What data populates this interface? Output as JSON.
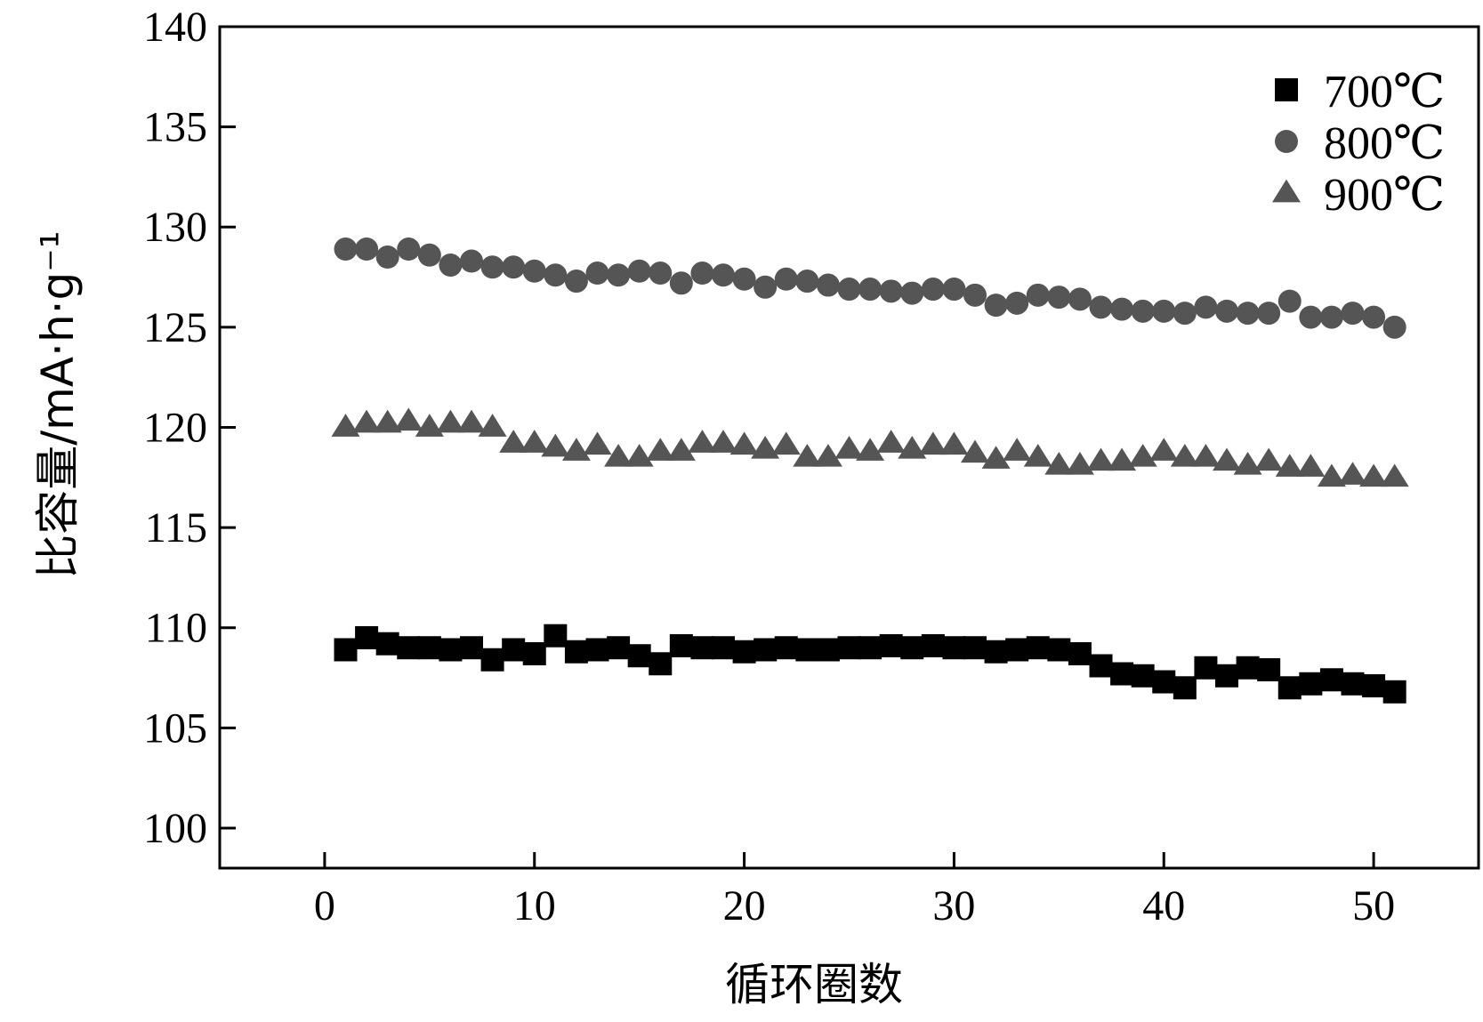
{
  "chart_data": {
    "type": "scatter",
    "xlabel": "循环圈数",
    "ylabel": "比容量/mA·h·g⁻¹",
    "xlim": [
      -5,
      55
    ],
    "ylim": [
      98,
      140
    ],
    "x_ticks": [
      0,
      10,
      20,
      30,
      40,
      50
    ],
    "y_ticks": [
      100,
      105,
      110,
      115,
      120,
      125,
      130,
      135,
      140
    ],
    "grid": false,
    "legend_position": "top-right",
    "x": [
      1,
      2,
      3,
      4,
      5,
      6,
      7,
      8,
      9,
      10,
      11,
      12,
      13,
      14,
      15,
      16,
      17,
      18,
      19,
      20,
      21,
      22,
      23,
      24,
      25,
      26,
      27,
      28,
      29,
      30,
      31,
      32,
      33,
      34,
      35,
      36,
      37,
      38,
      39,
      40,
      41,
      42,
      43,
      44,
      45,
      46,
      47,
      48,
      49,
      50,
      51
    ],
    "series": [
      {
        "name": "700℃",
        "marker": "square",
        "color": "#000000",
        "values": [
          108.9,
          109.5,
          109.2,
          109.0,
          109.0,
          108.9,
          109.0,
          108.4,
          108.9,
          108.7,
          109.6,
          108.8,
          108.9,
          109.0,
          108.6,
          108.2,
          109.1,
          109.0,
          109.0,
          108.8,
          108.9,
          109.0,
          108.9,
          108.9,
          109.0,
          109.0,
          109.1,
          109.0,
          109.1,
          109.0,
          109.0,
          108.8,
          108.9,
          109.0,
          108.9,
          108.7,
          108.1,
          107.7,
          107.6,
          107.3,
          107.0,
          108.0,
          107.6,
          108.0,
          107.9,
          107.0,
          107.2,
          107.4,
          107.2,
          107.1,
          106.8
        ]
      },
      {
        "name": "800℃",
        "marker": "circle",
        "color": "#555555",
        "values": [
          128.9,
          128.9,
          128.5,
          128.9,
          128.6,
          128.1,
          128.3,
          128.0,
          128.0,
          127.8,
          127.6,
          127.3,
          127.7,
          127.6,
          127.8,
          127.7,
          127.2,
          127.7,
          127.6,
          127.4,
          127.0,
          127.4,
          127.3,
          127.1,
          126.9,
          126.9,
          126.8,
          126.7,
          126.9,
          126.9,
          126.6,
          126.1,
          126.2,
          126.6,
          126.5,
          126.4,
          126.0,
          125.9,
          125.8,
          125.8,
          125.7,
          126.0,
          125.8,
          125.7,
          125.7,
          126.3,
          125.5,
          125.5,
          125.7,
          125.5,
          125.0
        ]
      },
      {
        "name": "900℃",
        "marker": "triangle",
        "color": "#555555",
        "values": [
          120.0,
          120.2,
          120.2,
          120.3,
          120.0,
          120.2,
          120.2,
          120.0,
          119.2,
          119.2,
          119.0,
          118.8,
          119.1,
          118.5,
          118.5,
          118.8,
          118.8,
          119.2,
          119.2,
          119.1,
          118.9,
          119.1,
          118.5,
          118.5,
          118.9,
          118.8,
          119.2,
          118.9,
          119.1,
          119.1,
          118.7,
          118.4,
          118.8,
          118.5,
          118.1,
          118.1,
          118.3,
          118.3,
          118.5,
          118.8,
          118.5,
          118.5,
          118.3,
          118.1,
          118.3,
          118.0,
          118.0,
          117.5,
          117.6,
          117.5,
          117.5
        ]
      }
    ]
  }
}
